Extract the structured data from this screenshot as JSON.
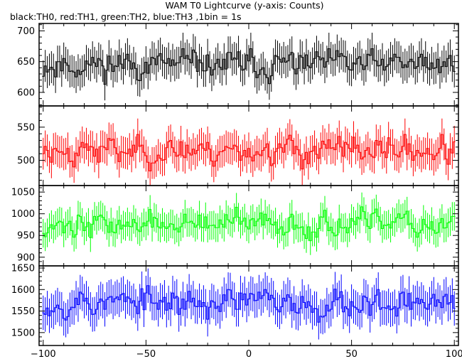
{
  "chart_data": {
    "type": "line",
    "title": "WAM T0 Lightcurve (y-axis: Counts)",
    "subtitle": "black:TH0, red:TH1, green:TH2, blue:TH3 ,1bin = 1s",
    "xlabel": "",
    "xlim": [
      -102,
      102
    ],
    "x_ticks": [
      -100,
      -50,
      0,
      50,
      100
    ],
    "x_tick_labels": [
      "−100",
      "−50",
      "0",
      "50",
      "100"
    ],
    "bin_seconds": 1,
    "grid": false,
    "panels": [
      {
        "name": "TH0",
        "color": "#000000",
        "ylim": [
          578,
          712
        ],
        "y_ticks": [
          600,
          650,
          700
        ],
        "y_tick_labels": [
          "600",
          "650",
          "700"
        ],
        "mean": 645,
        "sd": 20,
        "err": 26,
        "seed": 11
      },
      {
        "name": "TH1",
        "color": "#ff0000",
        "ylim": [
          462,
          582
        ],
        "y_ticks": [
          500,
          550
        ],
        "y_tick_labels": [
          "500",
          "550"
        ],
        "mean": 515,
        "sd": 18,
        "err": 24,
        "seed": 23
      },
      {
        "name": "TH2",
        "color": "#00ff00",
        "ylim": [
          880,
          1065
        ],
        "y_ticks": [
          900,
          950,
          1000,
          1050
        ],
        "y_tick_labels": [
          "900",
          "950",
          "1000",
          "1050"
        ],
        "mean": 975,
        "sd": 25,
        "err": 33,
        "seed": 37
      },
      {
        "name": "TH3",
        "color": "#0000ff",
        "ylim": [
          1470,
          1655
        ],
        "y_ticks": [
          1500,
          1550,
          1600,
          1650
        ],
        "y_tick_labels": [
          "1500",
          "1550",
          "1600",
          "1650"
        ],
        "mean": 1570,
        "sd": 30,
        "err": 40,
        "seed": 53
      }
    ]
  }
}
